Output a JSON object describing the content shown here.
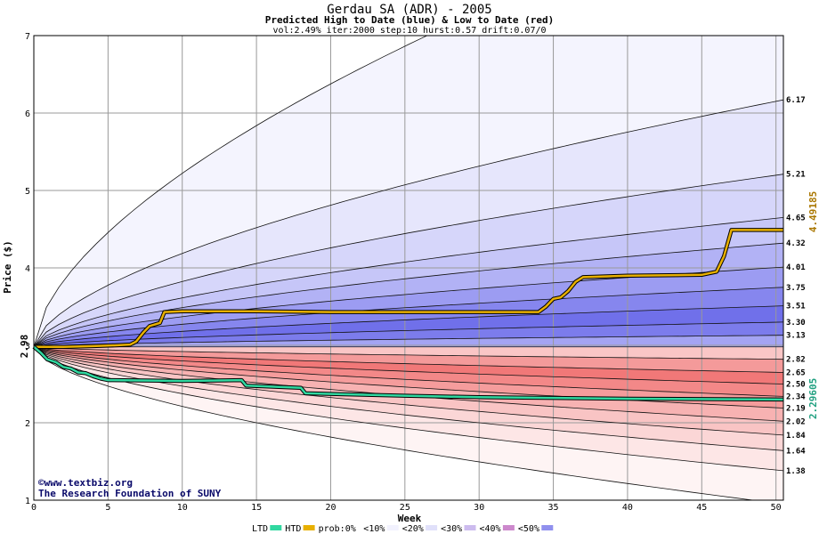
{
  "chart_data": {
    "type": "area",
    "title": "Gerdau SA (ADR) - 2005",
    "subtitle": "Predicted High to Date (blue) &  Low to Date (red)",
    "params": "vol:2.49% iter:2000 step:10 hurst:0.57 drift:0.07/0",
    "xlabel": "Week",
    "ylabel": "Price ($)",
    "xlim": [
      0,
      50.5
    ],
    "ylim": [
      1,
      7
    ],
    "x_ticks": [
      "0",
      "5",
      "10",
      "15",
      "20",
      "25",
      "30",
      "35",
      "40",
      "45",
      "50"
    ],
    "y_ticks": [
      "1",
      "2",
      "3",
      "4",
      "5",
      "6",
      "7"
    ],
    "grid": true,
    "start_price": 2.98,
    "start_label": "2.98",
    "high_end_label": "4.49185",
    "low_end_label": "2.29605",
    "upper_levels": [
      {
        "label": "6.17",
        "value": 6.17
      },
      {
        "label": "5.21",
        "value": 5.21
      },
      {
        "label": "4.65",
        "value": 4.65
      },
      {
        "label": "4.32",
        "value": 4.32
      },
      {
        "label": "4.01",
        "value": 4.01
      },
      {
        "label": "3.75",
        "value": 3.75
      },
      {
        "label": "3.51",
        "value": 3.51
      },
      {
        "label": "3.30",
        "value": 3.3
      },
      {
        "label": "3.13",
        "value": 3.13
      }
    ],
    "lower_levels": [
      {
        "label": "2.82",
        "value": 2.82
      },
      {
        "label": "2.65",
        "value": 2.65
      },
      {
        "label": "2.50",
        "value": 2.5
      },
      {
        "label": "2.34",
        "value": 2.34
      },
      {
        "label": "2.19",
        "value": 2.19
      },
      {
        "label": "2.02",
        "value": 2.02
      },
      {
        "label": "1.84",
        "value": 1.84
      },
      {
        "label": "1.64",
        "value": 1.64
      },
      {
        "label": "1.38",
        "value": 1.38
      }
    ],
    "outer_upper_end": 8.9,
    "outer_lower_end": 0.95,
    "band_colors_upper": [
      "#f4f4fe",
      "#e6e6fc",
      "#d6d6fa",
      "#c6c6f8",
      "#b2b2f5",
      "#9c9cf2",
      "#8686ee",
      "#7070ea",
      "#7c7cec",
      "#a4a4f3"
    ],
    "band_colors_lower": [
      "#fef4f4",
      "#fde6e6",
      "#fbd6d6",
      "#f9c4c4",
      "#f7b2b2",
      "#f59c9c",
      "#f38888",
      "#f17878",
      "#f49a9a",
      "#fac6c6"
    ],
    "series": [
      {
        "name": "HTD",
        "color": "#e8b000",
        "x": [
          0,
          2,
          4,
          5.5,
          6.5,
          6.9,
          7.4,
          7.8,
          8.5,
          8.8,
          10,
          15,
          20,
          25,
          30,
          34,
          34.5,
          35,
          35.5,
          36,
          36.5,
          37,
          40,
          45,
          46,
          46.5,
          47,
          50.5
        ],
        "y": [
          2.98,
          2.98,
          2.99,
          3.0,
          3.01,
          3.05,
          3.17,
          3.25,
          3.29,
          3.43,
          3.44,
          3.44,
          3.43,
          3.43,
          3.43,
          3.43,
          3.5,
          3.6,
          3.62,
          3.7,
          3.82,
          3.88,
          3.9,
          3.91,
          3.95,
          4.15,
          4.49,
          4.49
        ]
      },
      {
        "name": "LTD",
        "color": "#30d8a0",
        "x": [
          0,
          0.5,
          0.9,
          1.5,
          2,
          2.5,
          3,
          3.5,
          4,
          4.5,
          5,
          10,
          14,
          14.3,
          18,
          18.3,
          25,
          30,
          40,
          50.5
        ],
        "y": [
          2.98,
          2.9,
          2.82,
          2.78,
          2.72,
          2.7,
          2.65,
          2.64,
          2.6,
          2.57,
          2.55,
          2.54,
          2.55,
          2.48,
          2.45,
          2.38,
          2.35,
          2.33,
          2.31,
          2.3
        ]
      }
    ],
    "legend": [
      {
        "label": "LTD",
        "swatch": "#30d8a0"
      },
      {
        "label": "HTD",
        "swatch": "#e8b000"
      },
      {
        "label": "prob:0%",
        "swatch": ""
      },
      {
        "label": "<10%",
        "swatch": "#f2f2fe"
      },
      {
        "label": "<20%",
        "swatch": "#e0e0fa"
      },
      {
        "label": "<30%",
        "swatch": "#ccbbee"
      },
      {
        "label": "<40%",
        "swatch": "#cc88cc"
      },
      {
        "label": "<50%",
        "swatch": "#9090ee"
      }
    ],
    "legend_placement": "bottom"
  },
  "watermark": {
    "line1": "©www.textbiz.org",
    "line2": "The Research Foundation of SUNY"
  }
}
